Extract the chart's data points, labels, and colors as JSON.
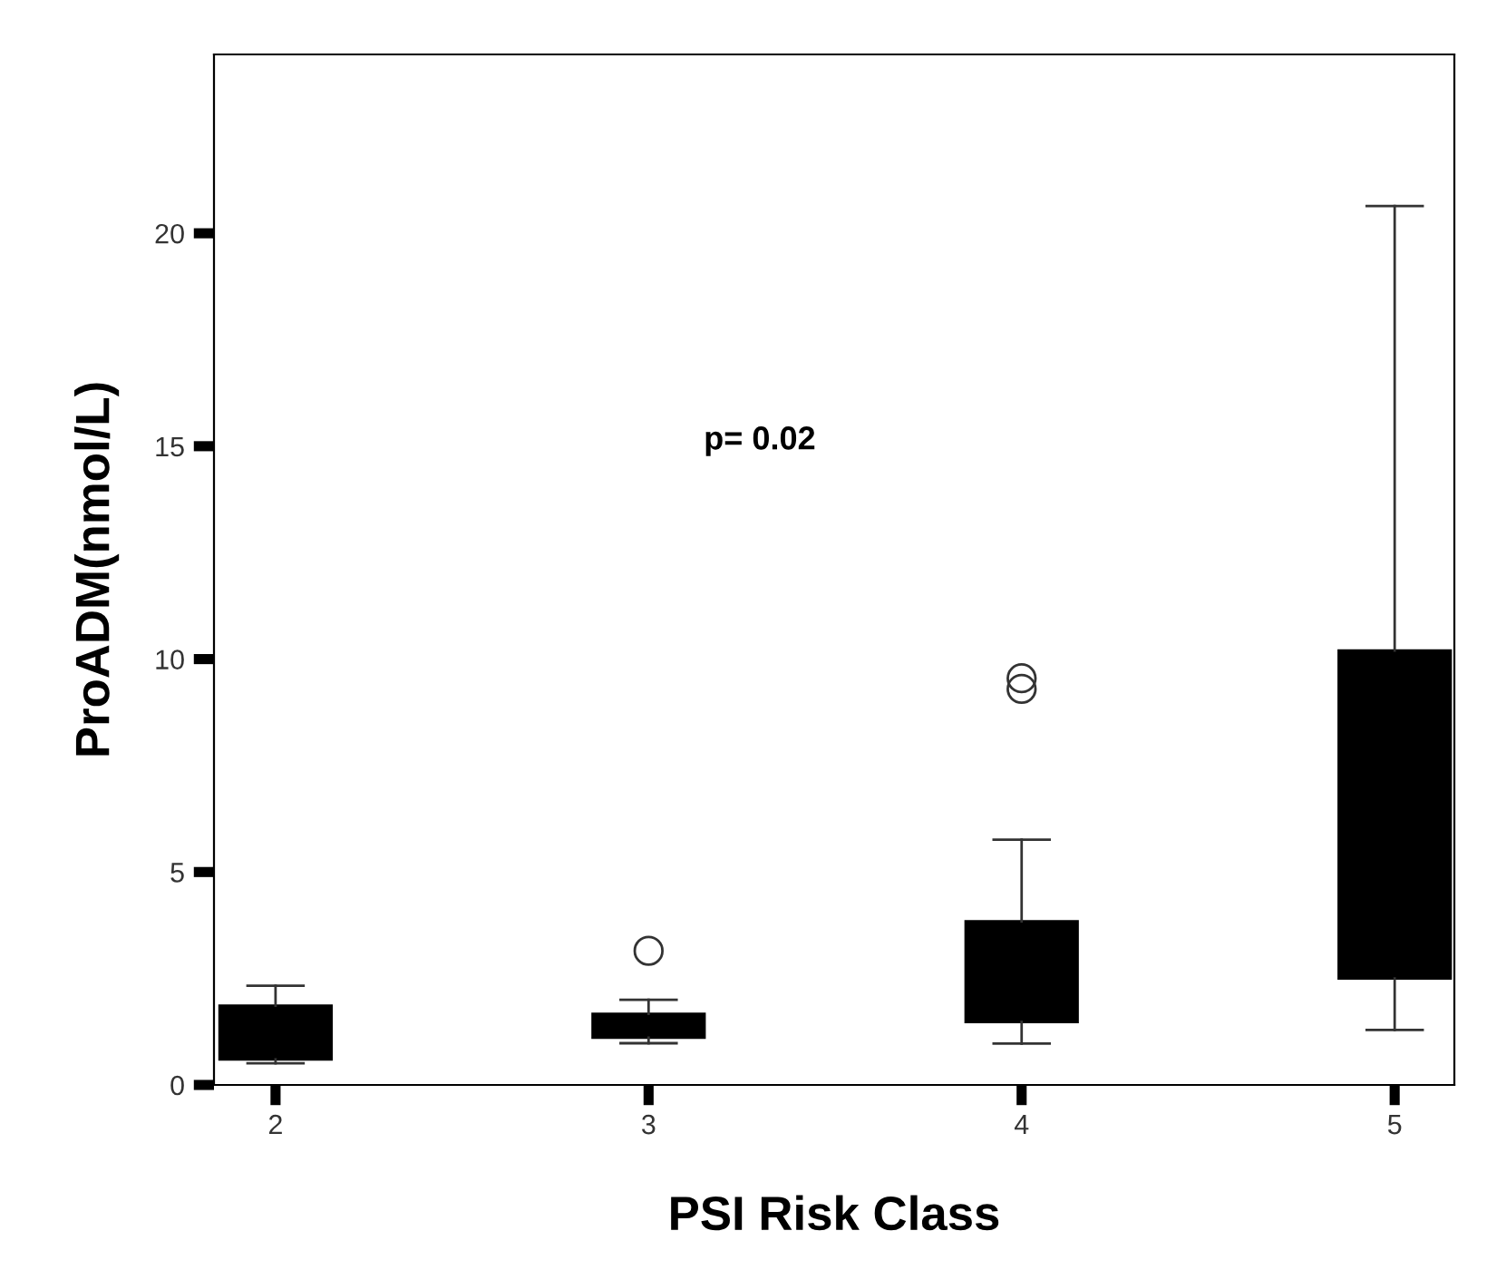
{
  "chart_data": {
    "type": "box",
    "xlabel": "PSI Risk Class",
    "ylabel": "ProADM(nmol/L)",
    "categories": [
      "2",
      "3",
      "4",
      "5"
    ],
    "boxes": [
      {
        "low": 0.51,
        "q1": 0.6,
        "median": 1.2,
        "q3": 1.86,
        "high": 2.33
      },
      {
        "low": 0.98,
        "q1": 1.11,
        "median": 1.4,
        "q3": 1.67,
        "high": 2.0,
        "outliers": [
          3.15
        ]
      },
      {
        "low": 0.97,
        "q1": 1.48,
        "median": 2.5,
        "q3": 3.84,
        "high": 5.76,
        "outliers": [
          9.3,
          9.55
        ]
      },
      {
        "low": 1.29,
        "q1": 2.5,
        "median": 5.0,
        "q3": 10.2,
        "high": 20.64
      }
    ],
    "color": "#000000",
    "ylim": [
      0,
      24.2
    ],
    "yticks": [
      0,
      5,
      10,
      15,
      20
    ],
    "annotations": [
      "p= 0.02"
    ],
    "grid": false,
    "legend": false
  }
}
